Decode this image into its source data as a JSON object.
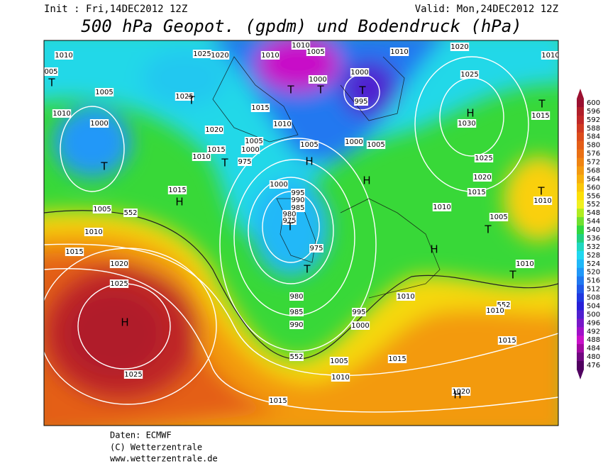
{
  "header": {
    "init": "Init : Fri,14DEC2012 12Z",
    "valid": "Valid: Mon,24DEC2012 12Z",
    "title": "500 hPa Geopot. (gpdm) und Bodendruck (hPa)"
  },
  "map": {
    "labels": [
      "1010",
      "005",
      "T",
      "1005",
      "1010",
      "1000",
      "T",
      "1015",
      "H",
      "1005",
      "552",
      "1010",
      "1015",
      "1020",
      "1025",
      "H",
      "1025",
      "1025",
      "1020",
      "1025",
      "T",
      "1020",
      "1015",
      "1010",
      "T",
      "1005",
      "1000",
      "975",
      "1010",
      "1010",
      "1005",
      "T",
      "1015",
      "1010",
      "1000",
      "T",
      "1005",
      "H",
      "1000",
      "995",
      "990",
      "985",
      "980",
      "975",
      "T",
      "975",
      "T",
      "980",
      "985",
      "990",
      "995",
      "1000",
      "552",
      "1005",
      "1010",
      "1015",
      "1000",
      "T",
      "995",
      "1000",
      "1005",
      "H",
      "1010",
      "1020",
      "1025",
      "H",
      "1030",
      "T",
      "1015",
      "1025",
      "1020",
      "1015",
      "1010",
      "1005",
      "T",
      "H",
      "1010",
      "T",
      "1010",
      "552",
      "1010",
      "1015",
      "1015",
      "1020",
      "H",
      "1010",
      "T",
      "1010"
    ]
  },
  "colorbar": {
    "levels": [
      600,
      596,
      592,
      588,
      584,
      580,
      576,
      572,
      568,
      564,
      560,
      556,
      552,
      548,
      544,
      540,
      536,
      532,
      528,
      524,
      520,
      516,
      512,
      508,
      504,
      500,
      496,
      492,
      488,
      484,
      480,
      476
    ],
    "colors": [
      "#9b1030",
      "#b01f2a",
      "#c02828",
      "#d03a22",
      "#dc4c1c",
      "#e45e18",
      "#ea7014",
      "#ef8412",
      "#f39a10",
      "#f7b00c",
      "#fac80a",
      "#fde008",
      "#f0f020",
      "#b0ec20",
      "#70e030",
      "#30d840",
      "#20d080",
      "#20d8c0",
      "#20d8f0",
      "#20b8f8",
      "#2098f8",
      "#2078f0",
      "#2058e8",
      "#2038e0",
      "#2820d8",
      "#5020d0",
      "#7818c8",
      "#a010c8",
      "#c810c8",
      "#a008a0",
      "#700880",
      "#500060"
    ]
  },
  "footer": {
    "source": "Daten: ECMWF",
    "copyright": "(C) Wetterzentrale",
    "url": "www.wetterzentrale.de"
  }
}
